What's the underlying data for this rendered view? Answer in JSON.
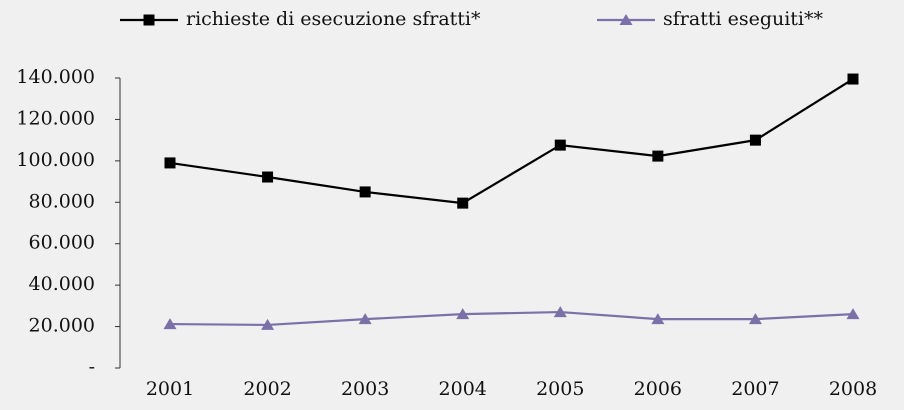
{
  "chart_data": {
    "type": "line",
    "categories": [
      "2001",
      "2002",
      "2003",
      "2004",
      "2005",
      "2006",
      "2007",
      "2008"
    ],
    "series": [
      {
        "name": "richieste di esecuzione sfratti*",
        "color": "#000000",
        "marker": "square",
        "values": [
          99000,
          92200,
          85000,
          79600,
          107600,
          102300,
          110000,
          139500
        ]
      },
      {
        "name": "sfratti eseguiti**",
        "color": "#7b70a8",
        "marker": "triangle",
        "values": [
          21200,
          20800,
          23600,
          26000,
          27000,
          23600,
          23600,
          26000
        ]
      }
    ],
    "ylim": [
      0,
      140000
    ],
    "yticks": [
      {
        "value": 0,
        "label": "-"
      },
      {
        "value": 20000,
        "label": "20.000"
      },
      {
        "value": 40000,
        "label": "40.000"
      },
      {
        "value": 60000,
        "label": "60.000"
      },
      {
        "value": 80000,
        "label": "80.000"
      },
      {
        "value": 100000,
        "label": "100.000"
      },
      {
        "value": 120000,
        "label": "120.000"
      },
      {
        "value": 140000,
        "label": "140.000"
      }
    ],
    "grid": false,
    "legend": "top"
  }
}
